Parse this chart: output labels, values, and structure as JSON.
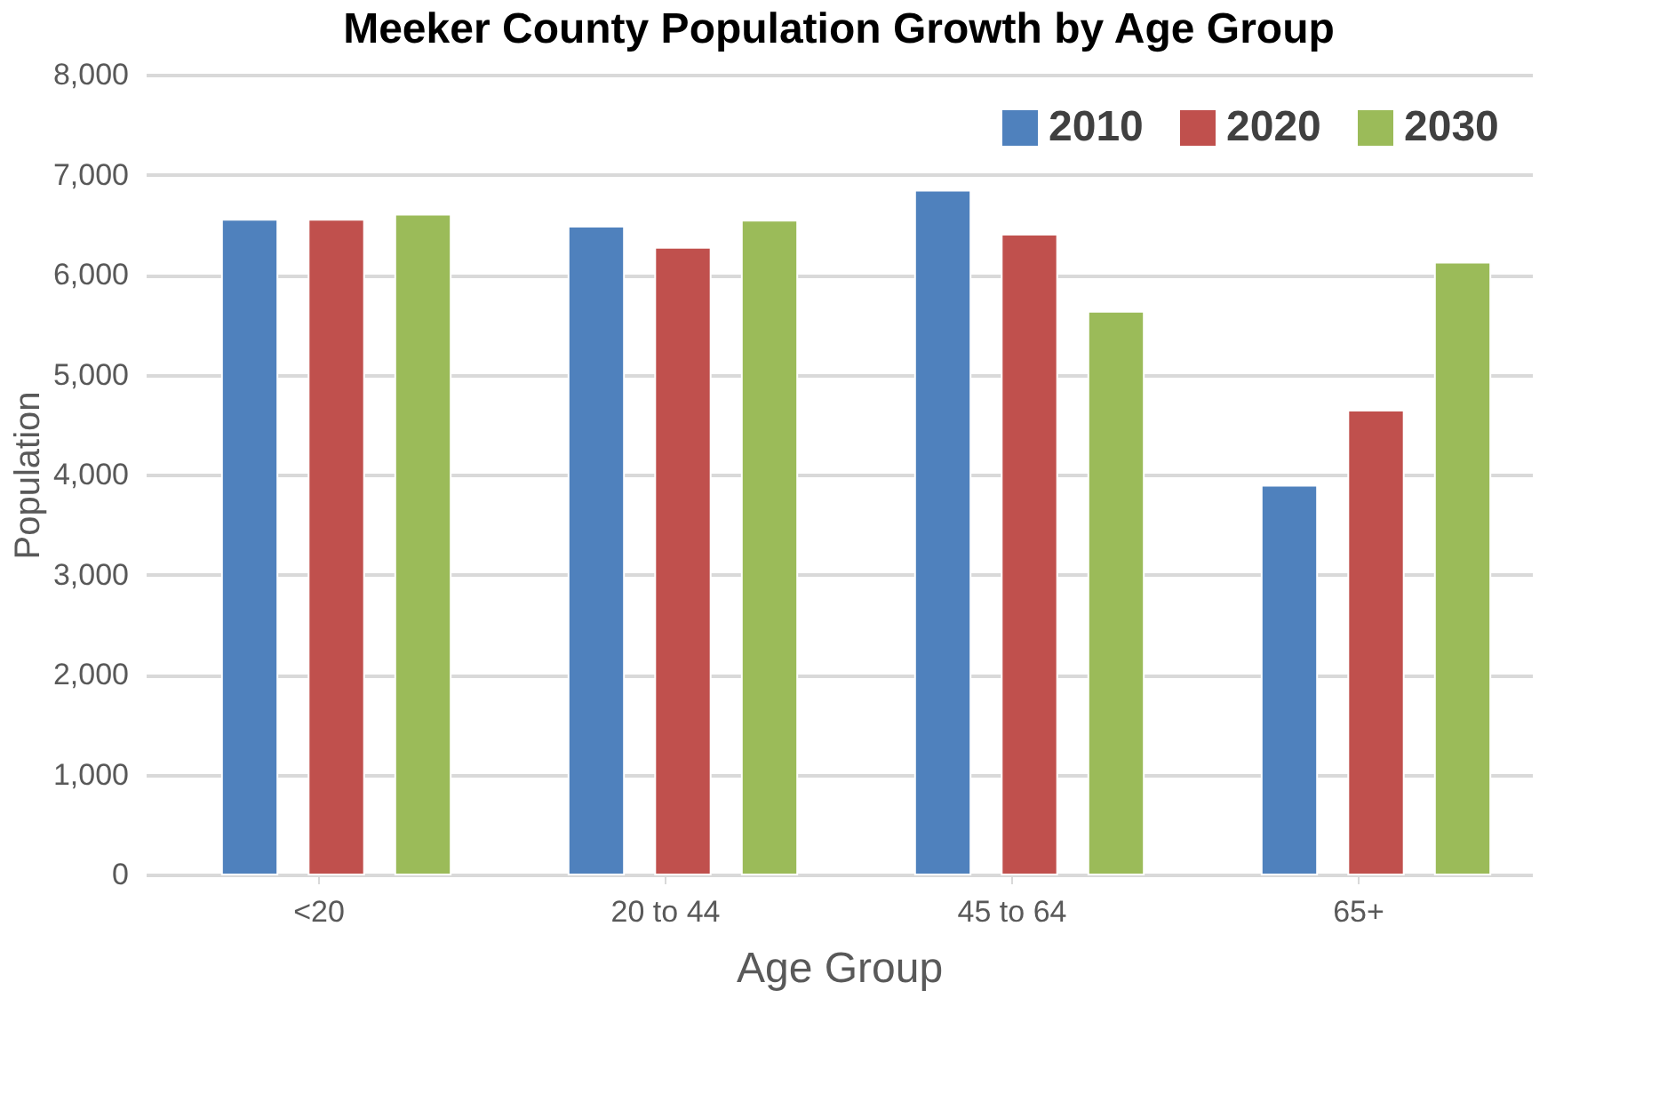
{
  "chart_data": {
    "type": "bar",
    "title": "Meeker County Population Growth by Age Group",
    "xlabel": "Age Group",
    "ylabel": "Population",
    "categories": [
      "<20",
      "20 to 44",
      "45 to 64",
      "65+"
    ],
    "series": [
      {
        "name": "2010",
        "color": "#4f81bd",
        "values": [
          6550,
          6480,
          6840,
          3890
        ]
      },
      {
        "name": "2020",
        "color": "#c0504d",
        "values": [
          6550,
          6270,
          6400,
          4640
        ]
      },
      {
        "name": "2030",
        "color": "#9bbb59",
        "values": [
          6600,
          6540,
          5630,
          6120
        ]
      }
    ],
    "ylim": [
      0,
      8000
    ],
    "yticks": [
      0,
      {
        "value": 1000,
        "label": "1,000"
      },
      {
        "value": 2000,
        "label": "2,000"
      },
      {
        "value": 3000,
        "label": "3,000"
      },
      {
        "value": 4000,
        "label": "4,000"
      },
      {
        "value": 5000,
        "label": "5,000"
      },
      {
        "value": 6000,
        "label": "6,000"
      },
      {
        "value": 7000,
        "label": "7,000"
      },
      {
        "value": 8000,
        "label": "8,000"
      }
    ],
    "grid": "y",
    "legend": "top right"
  }
}
